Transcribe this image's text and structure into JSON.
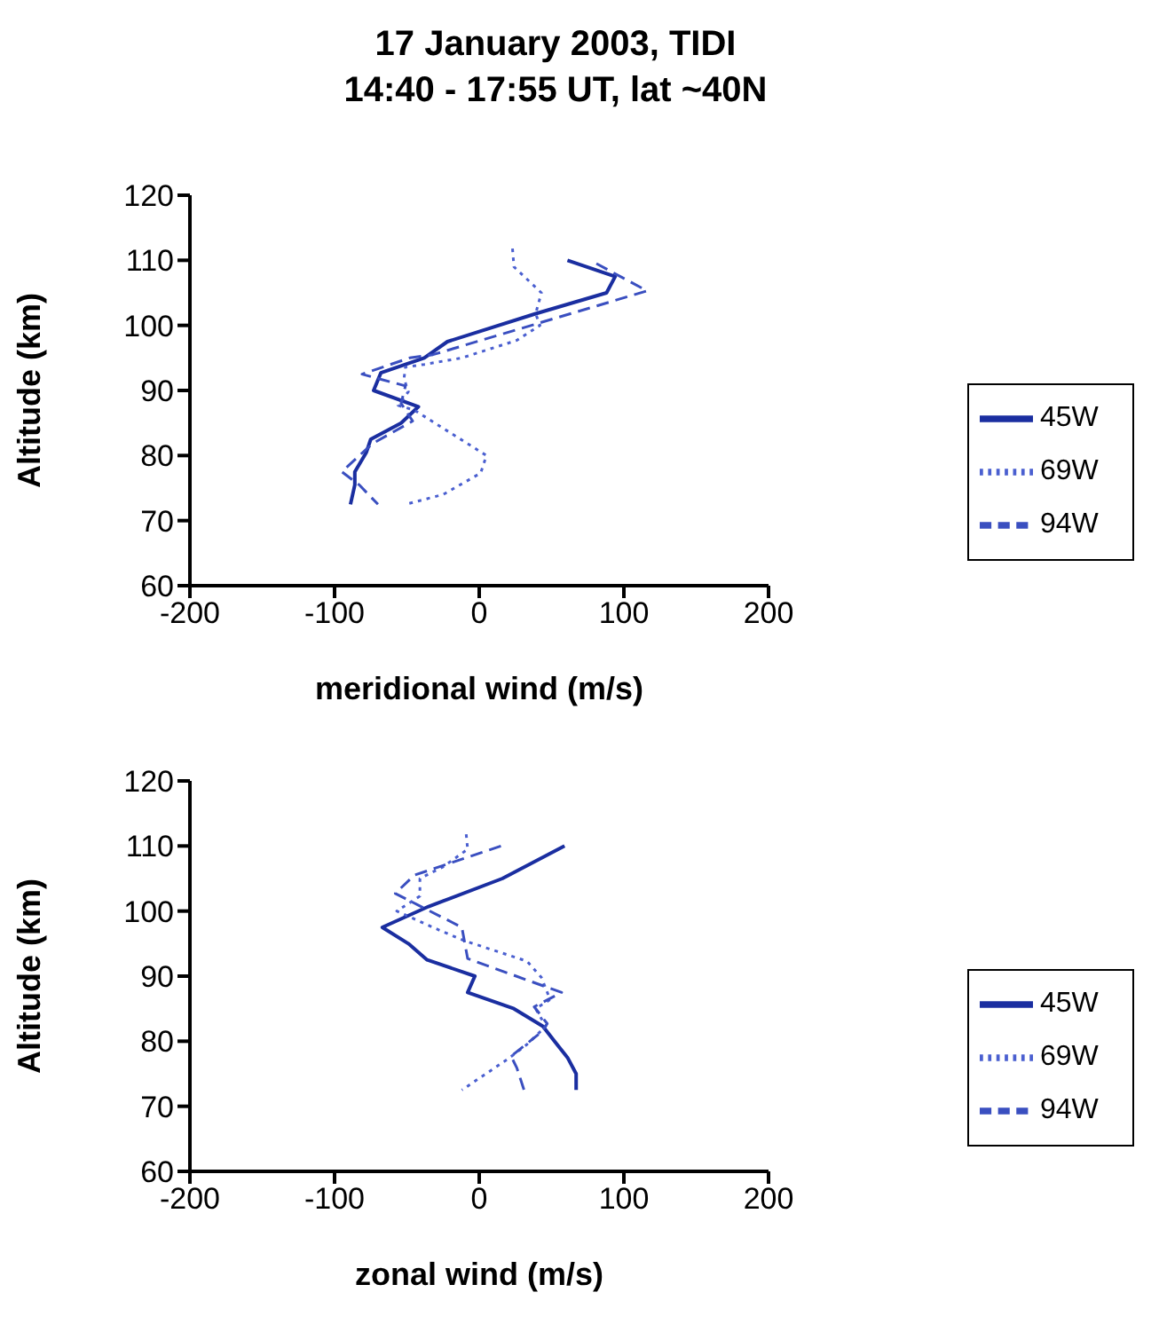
{
  "chart_data": [
    {
      "type": "line",
      "title": "17 January 2003, TIDI\n14:40 - 17:55 UT, lat ~40N",
      "xlabel": "meridional wind (m/s)",
      "ylabel": "Altitude (km)",
      "xlim": [
        -200,
        200
      ],
      "xticks": [
        -200,
        -100,
        0,
        100,
        200
      ],
      "ylim": [
        60,
        120
      ],
      "yticks": [
        60,
        70,
        80,
        90,
        100,
        110,
        120
      ],
      "grid": false,
      "legend": "right",
      "marker": "none",
      "series": [
        {
          "name": "45W",
          "color": "#1a2ea0",
          "line_style": "solid",
          "x": [
            61,
            94,
            88,
            39,
            -22,
            -38,
            -68,
            -73,
            -42,
            -54,
            -75,
            -78,
            -86,
            -86,
            -89
          ],
          "values": [
            110,
            107.5,
            105,
            101.8,
            97.5,
            95,
            92.7,
            90,
            87.5,
            85,
            82.5,
            80.5,
            77.5,
            75.5,
            72.5
          ]
        },
        {
          "name": "69W",
          "color": "#4a5fd0",
          "line_style": "dotted",
          "x": [
            23,
            24,
            43,
            39,
            42,
            26,
            -12,
            -38,
            -51,
            -52,
            -49,
            -56,
            -45,
            5,
            1,
            -25,
            -51
          ],
          "values": [
            111.8,
            109,
            105,
            101.8,
            100,
            97.7,
            95,
            94,
            93.6,
            91.8,
            89.8,
            87.7,
            87,
            80,
            77.3,
            74,
            72.5
          ]
        },
        {
          "name": "94W",
          "color": "#3a4fc0",
          "line_style": "dashed",
          "x": [
            81,
            116,
            -32,
            -48,
            -81,
            -51,
            -54,
            -46,
            -74,
            -95,
            -83,
            -70
          ],
          "values": [
            109.5,
            105.3,
            95.5,
            95,
            92.5,
            90.7,
            88,
            85.3,
            81.8,
            77.5,
            75.5,
            72.5
          ]
        }
      ]
    },
    {
      "type": "line",
      "xlabel": "zonal wind (m/s)",
      "ylabel": "Altitude (km)",
      "xlim": [
        -200,
        200
      ],
      "xticks": [
        -200,
        -100,
        0,
        100,
        200
      ],
      "ylim": [
        60,
        120
      ],
      "yticks": [
        60,
        70,
        80,
        90,
        100,
        110,
        120
      ],
      "grid": false,
      "legend": "right",
      "marker": "none",
      "series": [
        {
          "name": "45W",
          "color": "#1a2ea0",
          "line_style": "solid",
          "x": [
            59,
            16,
            -35,
            -67,
            -49,
            -36,
            -3,
            -8,
            24,
            44,
            52,
            61,
            67,
            67
          ],
          "values": [
            110,
            105,
            100.7,
            97.5,
            95,
            92.5,
            90,
            87.5,
            85,
            82.3,
            80,
            77.5,
            75,
            72.5
          ]
        },
        {
          "name": "69W",
          "color": "#4a5fd0",
          "line_style": "dotted",
          "x": [
            -9,
            -8,
            -25,
            -41,
            -41,
            -57,
            -30,
            -11,
            33,
            43,
            49,
            39,
            46,
            33,
            20,
            -12
          ],
          "values": [
            111.8,
            109.5,
            106.8,
            105,
            102.3,
            100,
            97.3,
            95.5,
            92.3,
            89.8,
            86.4,
            85,
            82.3,
            79.5,
            77.3,
            72.5
          ]
        },
        {
          "name": "94W",
          "color": "#3a4fc0",
          "line_style": "dashed",
          "x": [
            15,
            -25,
            -45,
            -58,
            -12,
            -8,
            43,
            57,
            38,
            47,
            43,
            22,
            26,
            31
          ],
          "values": [
            110,
            107,
            105.5,
            102.7,
            97.5,
            92.7,
            88.6,
            87.5,
            85.3,
            82.7,
            81.4,
            77.7,
            75.9,
            72.5
          ]
        }
      ]
    }
  ]
}
